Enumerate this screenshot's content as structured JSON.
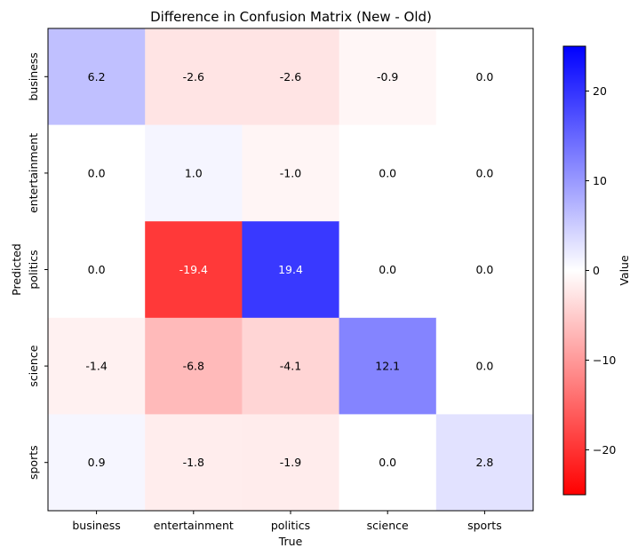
{
  "chart_data": {
    "type": "heatmap",
    "title": "Difference in Confusion Matrix (New - Old)",
    "xlabel": "True",
    "ylabel": "Predicted",
    "x_categories": [
      "business",
      "entertainment",
      "politics",
      "science",
      "sports"
    ],
    "y_categories": [
      "business",
      "entertainment",
      "politics",
      "science",
      "sports"
    ],
    "values": [
      [
        6.2,
        -2.6,
        -2.6,
        -0.9,
        0.0
      ],
      [
        0.0,
        1.0,
        -1.0,
        0.0,
        0.0
      ],
      [
        0.0,
        -19.4,
        19.4,
        0.0,
        0.0
      ],
      [
        -1.4,
        -6.8,
        -4.1,
        12.1,
        0.0
      ],
      [
        0.9,
        -1.8,
        -1.9,
        0.0,
        2.8
      ]
    ],
    "value_format": "0.0",
    "colormap": "bwr_r",
    "color_low": "#ff0000",
    "color_mid": "#ffffff",
    "color_high": "#0000ff",
    "vmin": -25,
    "vmax": 25,
    "colorbar": {
      "label": "Value",
      "ticks": [
        20,
        10,
        0,
        -10,
        -20
      ],
      "tick_labels": [
        "20",
        "10",
        "0",
        "−10",
        "−20"
      ]
    }
  }
}
